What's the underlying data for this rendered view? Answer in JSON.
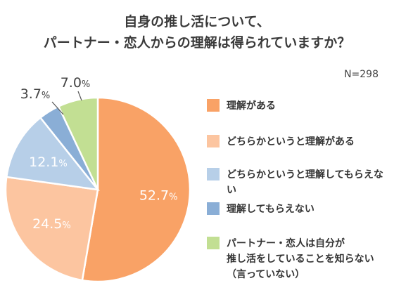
{
  "chart_data": {
    "type": "pie",
    "title_lines": [
      "自身の推し活について、",
      "パートナー・恋人からの理解は得られていますか？"
    ],
    "sample_size": "N=298",
    "unit": "%",
    "slices": [
      {
        "label": "理解がある",
        "value": 52.7,
        "display": "52.7",
        "color": "#f9a266",
        "label_color": "#ffffff"
      },
      {
        "label": "どちらかというと理解がある",
        "value": 24.5,
        "display": "24.5",
        "color": "#fcc5a0",
        "label_color": "#ffffff"
      },
      {
        "label": "どちらかというと理解してもらえない",
        "value": 12.1,
        "display": "12.1",
        "color": "#b7cfe8",
        "label_color": "#ffffff"
      },
      {
        "label": "理解してもらえない",
        "value": 3.7,
        "display": "3.7",
        "color": "#8aaed6",
        "label_color": "#444444"
      },
      {
        "label": "パートナー・恋人は自分が\n推し活をしていることを知らない\n（言っていない）",
        "value": 7.0,
        "display": "7.0",
        "color": "#c2df93",
        "label_color": "#444444"
      }
    ],
    "start_angle_deg": 0,
    "direction": "clockwise",
    "legend_position": "right"
  }
}
